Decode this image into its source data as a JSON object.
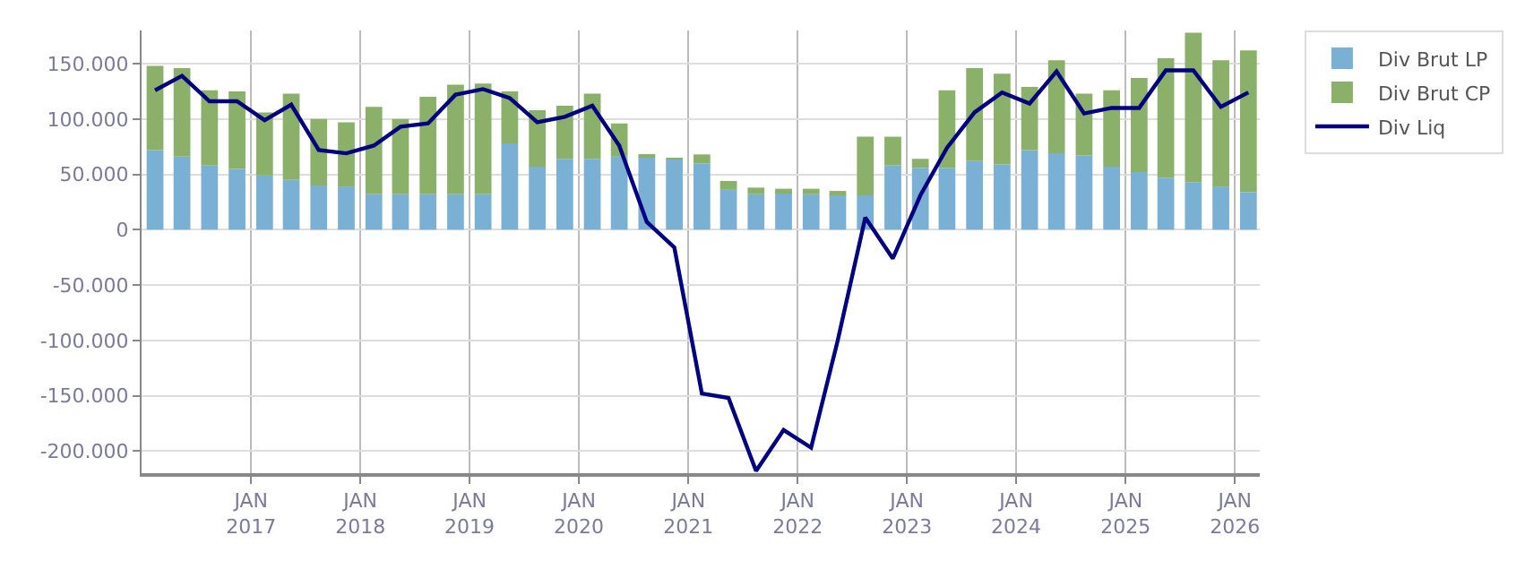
{
  "chart_data": {
    "type": "bar",
    "stacked": true,
    "x": [
      "2016-02-15",
      "2016-05-15",
      "2016-08-15",
      "2016-11-15",
      "2017-02-15",
      "2017-05-15",
      "2017-08-15",
      "2017-11-15",
      "2018-02-15",
      "2018-05-15",
      "2018-08-15",
      "2018-11-15",
      "2019-02-15",
      "2019-05-15",
      "2019-08-15",
      "2019-11-15",
      "2020-02-15",
      "2020-05-15",
      "2020-08-15",
      "2020-11-15",
      "2021-02-15",
      "2021-05-15",
      "2021-08-15",
      "2021-11-15",
      "2022-02-15",
      "2022-05-15",
      "2022-08-15",
      "2022-11-15",
      "2023-02-15",
      "2023-05-15",
      "2023-08-15",
      "2023-11-15",
      "2024-02-15",
      "2024-05-15",
      "2024-08-15",
      "2024-11-15",
      "2025-02-15",
      "2025-05-15",
      "2025-08-15",
      "2025-11-15",
      "2026-02-15"
    ],
    "series": [
      {
        "name": "Div Brut LP",
        "color": "#7ab0d4",
        "values": [
          72000,
          66000,
          58000,
          55000,
          49000,
          45000,
          40000,
          39000,
          32000,
          32000,
          32000,
          32000,
          32000,
          78000,
          57000,
          64000,
          64000,
          66000,
          66000,
          64000,
          60000,
          36000,
          32000,
          34000,
          32000,
          32000,
          31000,
          58000,
          56000,
          56000,
          62000,
          59000,
          72000,
          69000,
          67000,
          57000,
          52000,
          47000,
          43000,
          39000,
          34000
        ]
      },
      {
        "name": "Div Brut CP",
        "color": "#8ab06a",
        "values": [
          76000,
          80000,
          68000,
          70000,
          57000,
          78000,
          60000,
          58000,
          79000,
          68000,
          88000,
          99000,
          100000,
          47000,
          51000,
          48000,
          59000,
          30000,
          1000,
          1000,
          8000,
          8000,
          6000,
          3000,
          5000,
          3000,
          53000,
          26000,
          8000,
          70000,
          84000,
          82000,
          57000,
          84000,
          56000,
          69000,
          85000,
          108000,
          135000,
          114000,
          128000
        ]
      },
      {
        "name": "Div Liq",
        "type": "line",
        "color": "#000080",
        "line_style": "solid",
        "marker": "none",
        "values": [
          126000,
          139000,
          116000,
          116000,
          99000,
          113000,
          72000,
          69000,
          76000,
          93000,
          96000,
          122000,
          127000,
          119000,
          97000,
          102000,
          112000,
          76000,
          7000,
          -16000,
          -148000,
          -152000,
          -218000,
          -181000,
          -197000,
          -100000,
          11000,
          -26000,
          31000,
          74000,
          106000,
          124000,
          114000,
          143000,
          105000,
          110000,
          110000,
          144000,
          144000,
          111000,
          124000
        ]
      }
    ],
    "xlim": [
      "2016-01-01",
      "2026-03-25"
    ],
    "xticks": [
      {
        "value": "2017-01-01",
        "label": "JAN\n2017"
      },
      {
        "value": "2018-01-01",
        "label": "JAN\n2018"
      },
      {
        "value": "2019-01-01",
        "label": "JAN\n2019"
      },
      {
        "value": "2020-01-01",
        "label": "JAN\n2020"
      },
      {
        "value": "2021-01-01",
        "label": "JAN\n2021"
      },
      {
        "value": "2022-01-01",
        "label": "JAN\n2022"
      },
      {
        "value": "2023-01-01",
        "label": "JAN\n2023"
      },
      {
        "value": "2024-01-01",
        "label": "JAN\n2024"
      },
      {
        "value": "2025-01-01",
        "label": "JAN\n2025"
      },
      {
        "value": "2026-01-01",
        "label": "JAN\n2026"
      }
    ],
    "ylim": [
      -220000,
      180000
    ],
    "yticks": [
      {
        "value": -200000,
        "label": "-200.000"
      },
      {
        "value": -150000,
        "label": "-150.000"
      },
      {
        "value": -100000,
        "label": "-100.000"
      },
      {
        "value": -50000,
        "label": "-50.000"
      },
      {
        "value": 0,
        "label": "0"
      },
      {
        "value": 50000,
        "label": "50.000"
      },
      {
        "value": 100000,
        "label": "100.000"
      },
      {
        "value": 150000,
        "label": "150.000"
      }
    ],
    "grid": true,
    "legend": "top right"
  }
}
